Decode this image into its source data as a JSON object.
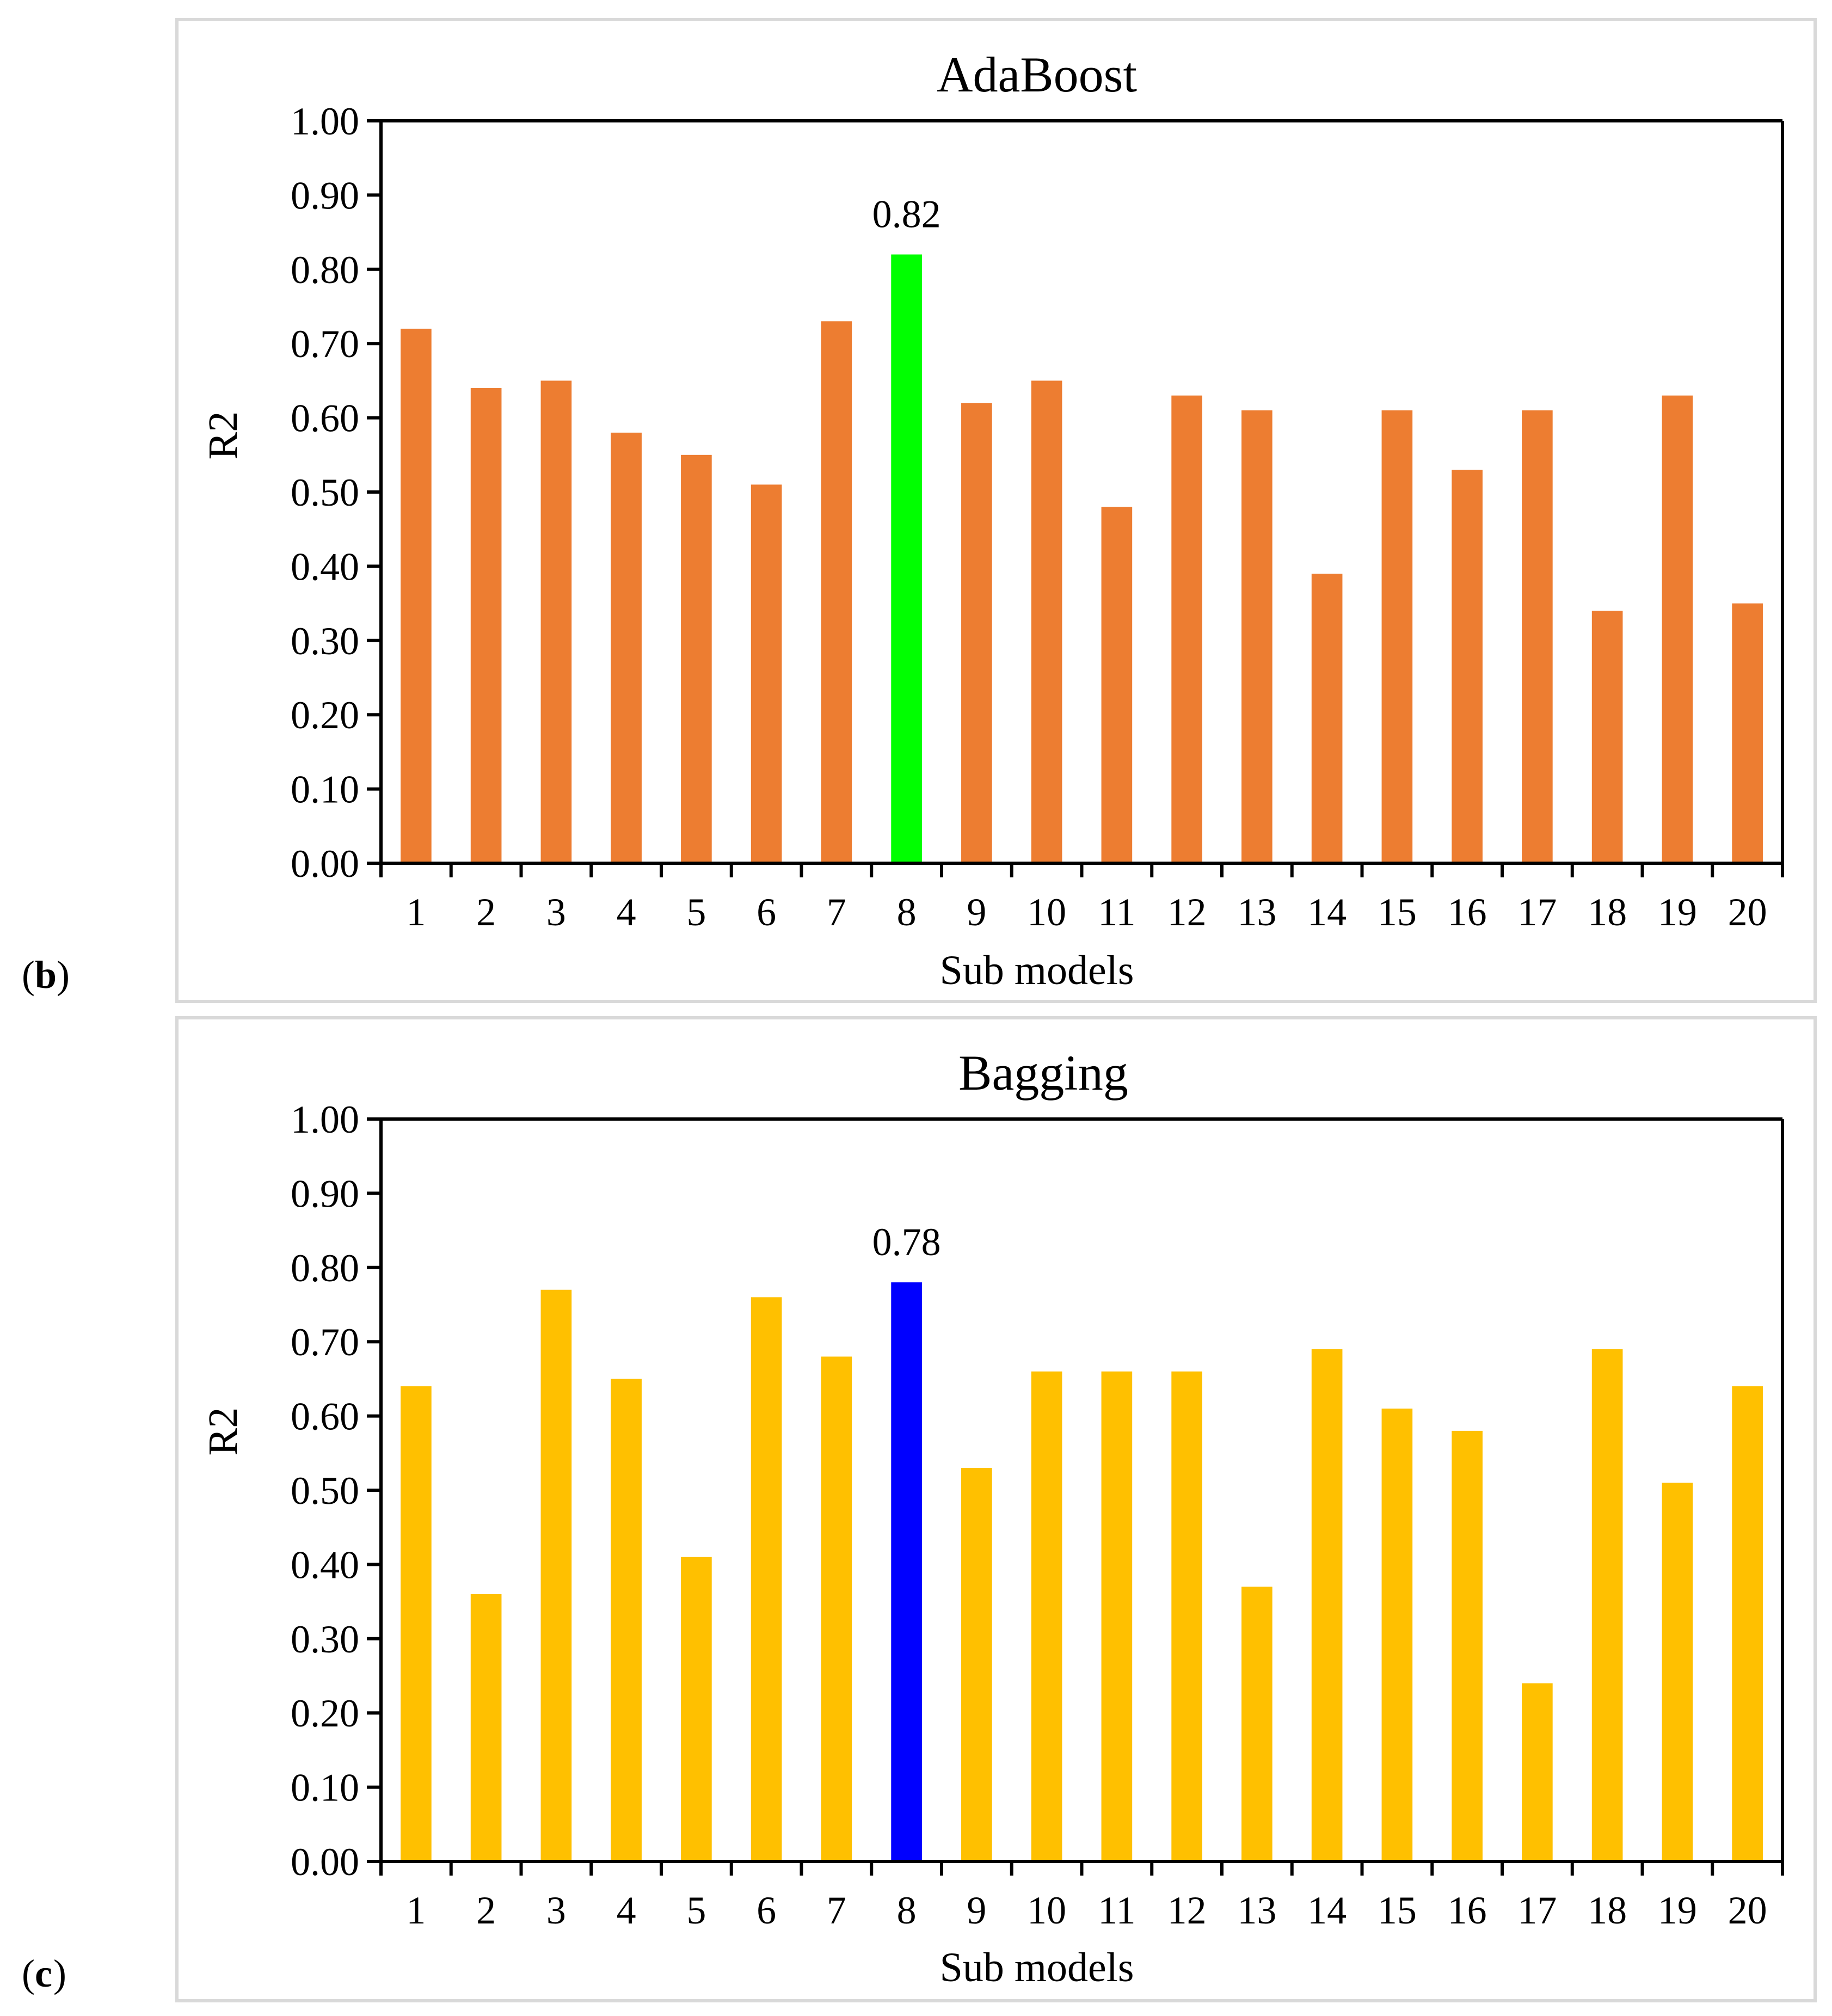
{
  "chart_data": [
    {
      "type": "bar",
      "panel_letter": "b",
      "title": "AdaBoost",
      "xlabel": "Sub models",
      "ylabel": "R2",
      "ylim": [
        0,
        1
      ],
      "yticks": [
        "0.00",
        "0.10",
        "0.20",
        "0.30",
        "0.40",
        "0.50",
        "0.60",
        "0.70",
        "0.80",
        "0.90",
        "1.00"
      ],
      "categories": [
        "1",
        "2",
        "3",
        "4",
        "5",
        "6",
        "7",
        "8",
        "9",
        "10",
        "11",
        "12",
        "13",
        "14",
        "15",
        "16",
        "17",
        "18",
        "19",
        "20"
      ],
      "values": [
        0.72,
        0.64,
        0.65,
        0.58,
        0.55,
        0.51,
        0.73,
        0.82,
        0.62,
        0.65,
        0.48,
        0.63,
        0.61,
        0.39,
        0.61,
        0.53,
        0.61,
        0.34,
        0.63,
        0.35
      ],
      "bar_color": "#ED7D31",
      "highlight_index": 7,
      "highlight_color": "#00FF00",
      "highlight_label": "0.82"
    },
    {
      "type": "bar",
      "panel_letter": "c",
      "title": "Bagging",
      "xlabel": "Sub models",
      "ylabel": "R2",
      "ylim": [
        0,
        1
      ],
      "yticks": [
        "0.00",
        "0.10",
        "0.20",
        "0.30",
        "0.40",
        "0.50",
        "0.60",
        "0.70",
        "0.80",
        "0.90",
        "1.00"
      ],
      "categories": [
        "1",
        "2",
        "3",
        "4",
        "5",
        "6",
        "7",
        "8",
        "9",
        "10",
        "11",
        "12",
        "13",
        "14",
        "15",
        "16",
        "17",
        "18",
        "19",
        "20"
      ],
      "values": [
        0.64,
        0.36,
        0.77,
        0.65,
        0.41,
        0.76,
        0.68,
        0.78,
        0.53,
        0.66,
        0.66,
        0.66,
        0.37,
        0.69,
        0.61,
        0.58,
        0.24,
        0.69,
        0.51,
        0.64
      ],
      "bar_color": "#FFC000",
      "highlight_index": 7,
      "highlight_color": "#0000FF",
      "highlight_label": "0.78"
    }
  ]
}
